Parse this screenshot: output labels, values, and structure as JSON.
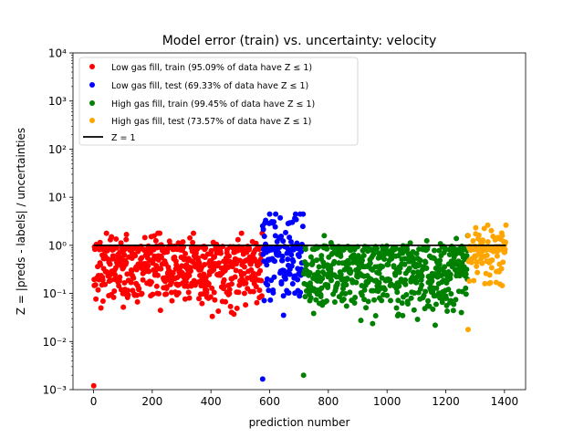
{
  "chart_data": {
    "type": "scatter",
    "title": "Model error (train) vs. uncertainty: velocity",
    "xlabel": "prediction number",
    "ylabel": "Z = |preds - labels| / uncertainties",
    "xlim": [
      -70,
      1472
    ],
    "ylim_log10": [
      -3,
      4
    ],
    "y_scale": "log",
    "x_ticks": [
      0,
      200,
      400,
      600,
      800,
      1000,
      1200,
      1400
    ],
    "x_tick_labels": [
      "0",
      "200",
      "400",
      "600",
      "800",
      "1000",
      "1200",
      "1400"
    ],
    "y_ticks_log10": [
      -3,
      -2,
      -1,
      0,
      1,
      2,
      3,
      4
    ],
    "y_tick_labels": [
      "10⁻³",
      "10⁻²",
      "10⁻¹",
      "10⁰",
      "10¹",
      "10²",
      "10³",
      "10⁴"
    ],
    "legend_position": "upper-left",
    "series": [
      {
        "name": "Low gas fill, train (95.09% of data have Z ≤ 1)",
        "color": "#ff0000",
        "x_range": [
          0,
          575
        ],
        "log10_z_center": -0.45,
        "log10_z_spread": 0.4,
        "fraction_z_le_1": 0.9509,
        "point_count": 575,
        "log10_z_min": -2.92,
        "log10_z_max": 0.25
      },
      {
        "name": "Low gas fill, test (69.33% of data have Z ≤ 1)",
        "color": "#0000ff",
        "x_range": [
          575,
          715
        ],
        "log10_z_center": -0.25,
        "log10_z_spread": 0.45,
        "fraction_z_le_1": 0.6933,
        "point_count": 140,
        "log10_z_min": -2.78,
        "log10_z_max": 0.65
      },
      {
        "name": "High gas fill, train (99.45% of data have Z ≤ 1)",
        "color": "#008000",
        "x_range": [
          715,
          1275
        ],
        "log10_z_center": -0.55,
        "log10_z_spread": 0.4,
        "fraction_z_le_1": 0.9945,
        "point_count": 560,
        "log10_z_min": -2.7,
        "log10_z_max": 0.2
      },
      {
        "name": "High gas fill, test (73.57% of data have Z ≤ 1)",
        "color": "#ffa500",
        "x_range": [
          1275,
          1405
        ],
        "log10_z_center": -0.1,
        "log10_z_spread": 0.35,
        "fraction_z_le_1": 0.7357,
        "point_count": 130,
        "log10_z_min": -1.75,
        "log10_z_max": 0.42
      }
    ],
    "reference_line": {
      "name": "Z = 1",
      "y": 1,
      "x_range": [
        0,
        1405
      ],
      "color": "#000000"
    }
  }
}
